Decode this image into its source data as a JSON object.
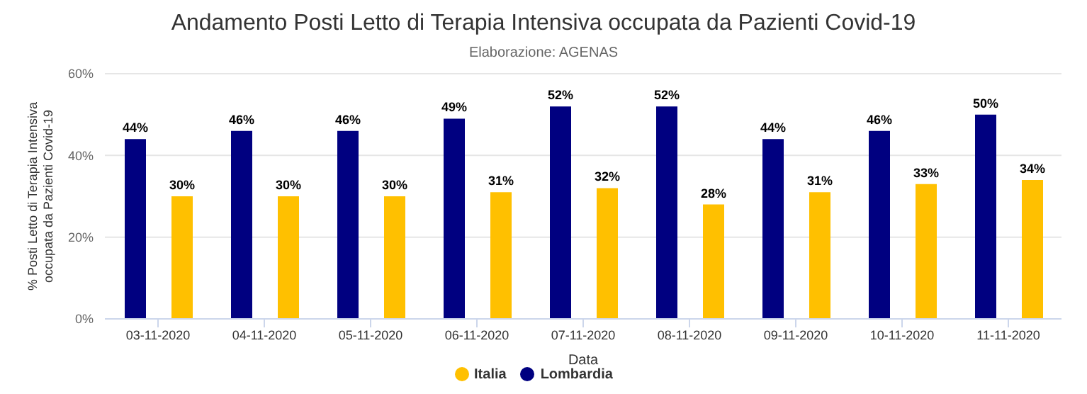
{
  "chart_data": {
    "type": "bar",
    "title": "Andamento Posti Letto di Terapia Intensiva occupata da Pazienti Covid-19",
    "subtitle": "Elaborazione: AGENAS",
    "xlabel": "Data",
    "ylabel": "% Posti Letto di Terapia Intensiva occupata da Pazienti Covid-19",
    "categories": [
      "03-11-2020",
      "04-11-2020",
      "05-11-2020",
      "06-11-2020",
      "07-11-2020",
      "08-11-2020",
      "09-11-2020",
      "10-11-2020",
      "11-11-2020"
    ],
    "series": [
      {
        "name": "Lombardia",
        "color": "#000080",
        "values": [
          44,
          46,
          46,
          49,
          52,
          52,
          44,
          46,
          50
        ],
        "value_labels": [
          "44%",
          "46%",
          "46%",
          "49%",
          "52%",
          "52%",
          "44%",
          "46%",
          "50%"
        ]
      },
      {
        "name": "Italia",
        "color": "#ffc000",
        "values": [
          30,
          30,
          30,
          31,
          32,
          28,
          31,
          33,
          34
        ],
        "value_labels": [
          "30%",
          "30%",
          "30%",
          "31%",
          "32%",
          "28%",
          "31%",
          "33%",
          "34%"
        ]
      }
    ],
    "ylim": [
      0,
      60
    ],
    "yticks": [
      {
        "value": 0,
        "label": "0%"
      },
      {
        "value": 20,
        "label": "20%"
      },
      {
        "value": 40,
        "label": "40%"
      },
      {
        "value": 60,
        "label": "60%"
      }
    ],
    "grid": "y",
    "legend": "bottom"
  }
}
